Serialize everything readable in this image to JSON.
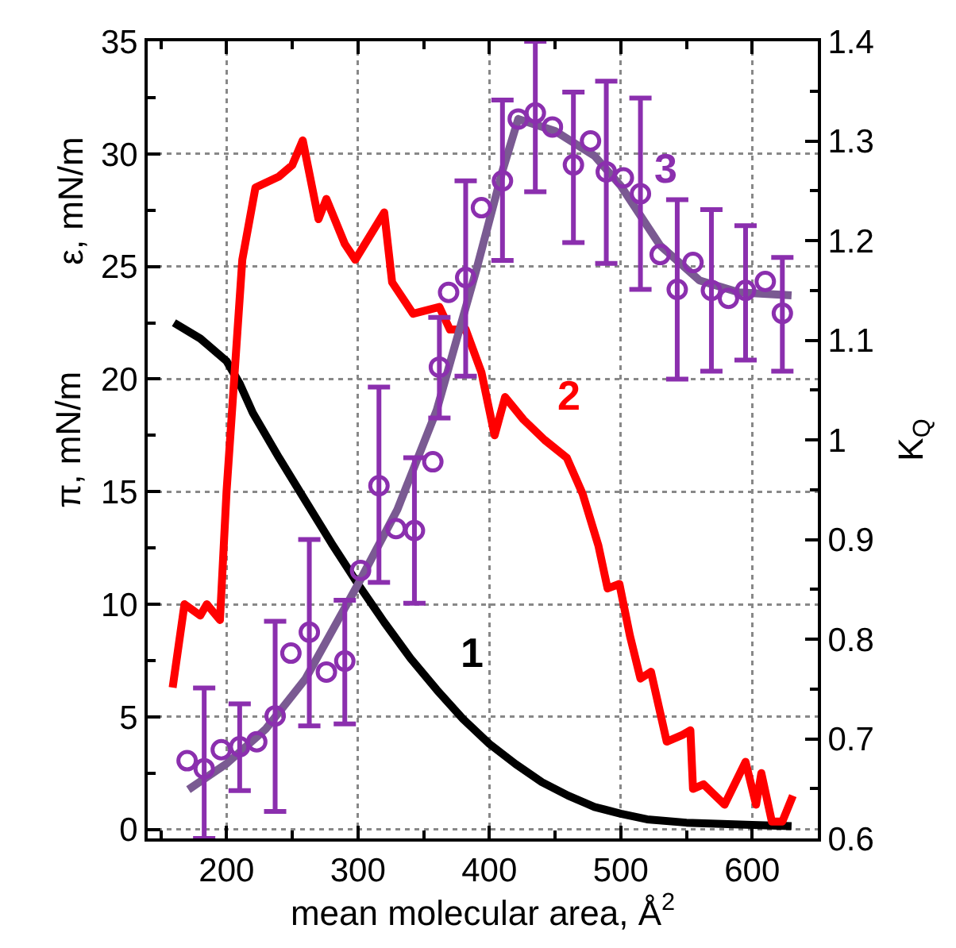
{
  "chart_data": {
    "type": "line",
    "xlabel": "mean molecular area, Å$^{2}$",
    "ylabel": "π, mN/m",
    "y2label": "K$_{Q}$",
    "annotations": [
      "ε, mN/m"
    ],
    "xlim": [
      140,
      650
    ],
    "xticks": [
      200,
      300,
      400,
      500,
      600,
      {
        "value": 150,
        "label": null
      },
      {
        "value": 250,
        "label": null
      },
      {
        "value": 350,
        "label": null
      },
      {
        "value": 450,
        "label": null
      },
      {
        "value": 550,
        "label": null
      },
      {
        "value": 650,
        "label": null
      }
    ],
    "ylim": [
      -0.4,
      35
    ],
    "yticks": [
      0,
      5,
      10,
      15,
      20,
      25,
      30,
      35,
      {
        "value": 2.5,
        "label": null
      },
      {
        "value": 7.5,
        "label": null
      },
      {
        "value": 12.5,
        "label": null
      },
      {
        "value": 17.5,
        "label": null
      },
      {
        "value": 22.5,
        "label": null
      },
      {
        "value": 27.5,
        "label": null
      },
      {
        "value": 32.5,
        "label": null
      }
    ],
    "y2lim": [
      0.6,
      1.4
    ],
    "y2ticks": [
      0.6,
      0.7,
      0.8,
      0.9,
      1.0,
      1.1,
      1.2,
      1.3,
      1.4,
      {
        "value": 0.65,
        "label": null
      },
      {
        "value": 0.75,
        "label": null
      },
      {
        "value": 0.85,
        "label": null
      },
      {
        "value": 0.95,
        "label": null
      },
      {
        "value": 1.05,
        "label": null
      },
      {
        "value": 1.15,
        "label": null
      },
      {
        "value": 1.25,
        "label": null
      },
      {
        "value": 1.35,
        "label": null
      }
    ],
    "grid": true,
    "marker": "circle",
    "line_style": "solid",
    "series": [
      {
        "name": "1",
        "marker": "none",
        "color": "#000000",
        "x": [
          160,
          180,
          200,
          210,
          220,
          240,
          260,
          280,
          300,
          320,
          340,
          360,
          380,
          400,
          420,
          440,
          460,
          480,
          500,
          520,
          550,
          600,
          630
        ],
        "values": [
          22.5,
          21.8,
          20.8,
          19.8,
          18.5,
          16.5,
          14.6,
          12.7,
          10.9,
          9.2,
          7.6,
          6.2,
          4.9,
          3.8,
          2.9,
          2.1,
          1.5,
          1.0,
          0.7,
          0.45,
          0.3,
          0.2,
          0.15
        ]
      },
      {
        "name": "2",
        "marker": "none",
        "color": "#ff0000",
        "x": [
          159,
          168,
          180,
          185,
          195,
          200,
          212,
          222,
          240,
          250,
          258,
          270,
          276,
          290,
          298,
          320,
          326,
          342,
          362,
          370,
          382,
          394,
          404,
          412,
          426,
          442,
          459,
          471,
          483,
          490,
          499,
          507,
          515,
          523,
          535,
          547,
          553,
          555,
          563,
          579,
          595,
          603,
          607,
          615,
          623,
          631
        ],
        "values": [
          6.3,
          10.0,
          9.5,
          10.0,
          9.3,
          15.0,
          25.3,
          28.5,
          29.0,
          29.5,
          30.6,
          27.1,
          28.0,
          26.0,
          25.3,
          27.4,
          24.3,
          22.9,
          23.2,
          22.2,
          22.2,
          20.3,
          17.5,
          19.2,
          18.2,
          17.3,
          16.5,
          14.9,
          12.6,
          10.7,
          10.9,
          8.6,
          6.7,
          7.0,
          3.9,
          4.2,
          4.4,
          1.8,
          2.0,
          1.1,
          3.0,
          1.1,
          2.5,
          0.35,
          0.35,
          1.5
        ]
      },
      {
        "name": "3",
        "type": "scatter",
        "axis": "y2",
        "color": "#8b2fae",
        "x": [
          170,
          183,
          196,
          210,
          223,
          237,
          249,
          263,
          276,
          290,
          302,
          316,
          329,
          343,
          357,
          362,
          369,
          382,
          394,
          410,
          422,
          435,
          448,
          464,
          477,
          489,
          502,
          515,
          530,
          543,
          555,
          569,
          582,
          595,
          610,
          623
        ],
        "values": [
          0.678,
          0.67,
          0.689,
          0.692,
          0.697,
          0.723,
          0.786,
          0.807,
          0.767,
          0.778,
          0.869,
          0.954,
          0.911,
          0.909,
          0.978,
          1.073,
          1.148,
          1.163,
          1.233,
          1.26,
          1.322,
          1.328,
          1.314,
          1.276,
          1.3,
          1.269,
          1.263,
          1.247,
          1.186,
          1.151,
          1.178,
          1.15,
          1.142,
          1.15,
          1.159,
          1.127
        ],
        "errors": [
          null,
          [
            0.6,
            0.751
          ],
          null,
          [
            0.648,
            0.735
          ],
          null,
          [
            0.627,
            0.818
          ],
          null,
          [
            0.713,
            0.9
          ],
          null,
          [
            0.715,
            0.839
          ],
          null,
          [
            0.857,
            1.053
          ],
          null,
          [
            0.836,
            0.982
          ],
          null,
          [
            1.022,
            1.123
          ],
          null,
          [
            1.064,
            1.26
          ],
          null,
          [
            1.18,
            1.341
          ],
          null,
          [
            1.249,
            1.4
          ],
          null,
          [
            1.198,
            1.349
          ],
          null,
          [
            1.177,
            1.36
          ],
          null,
          [
            1.151,
            1.343
          ],
          null,
          [
            1.061,
            1.241
          ],
          null,
          [
            1.069,
            1.231
          ],
          null,
          [
            1.08,
            1.215
          ],
          null,
          [
            1.069,
            1.183
          ]
        ]
      },
      {
        "marker": "none",
        "axis": "y2",
        "color": "#7a5a92",
        "x": [
          171,
          200,
          230,
          260,
          300,
          330,
          360,
          390,
          410,
          422,
          450,
          480,
          500,
          530,
          560,
          590,
          630
        ],
        "values": [
          0.649,
          0.675,
          0.71,
          0.76,
          0.855,
          0.93,
          1.03,
          1.17,
          1.27,
          1.322,
          1.31,
          1.285,
          1.255,
          1.195,
          1.16,
          1.148,
          1.145
        ]
      }
    ]
  }
}
